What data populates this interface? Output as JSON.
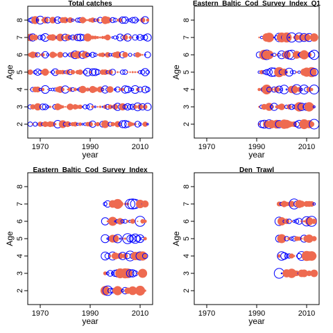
{
  "colors": {
    "positive": "#EE6A50",
    "negative": "#0000FF",
    "axis": "#000000"
  },
  "chart_data": [
    {
      "type": "scatter",
      "title": "Total catches",
      "xlabel": "year",
      "ylabel": "Age",
      "xlim": [
        1965,
        2015
      ],
      "ylim": [
        1.2,
        8.8
      ],
      "xticks": [
        "1970",
        "1990",
        "2010"
      ],
      "yticks": [
        "2",
        "3",
        "4",
        "5",
        "6",
        "7",
        "8"
      ],
      "years": [
        1966,
        2013
      ],
      "ages": [
        2,
        8
      ],
      "bubble_note": "bubbles in every year for ages 2-8"
    },
    {
      "type": "scatter",
      "title": "Eastern_Baltic_Cod_Survey_Index_Q1",
      "xlabel": "year",
      "ylabel": "Age",
      "xlim": [
        1965,
        2015
      ],
      "ylim": [
        1.2,
        8.8
      ],
      "xticks": [
        "1970",
        "1990",
        "2010"
      ],
      "yticks": [
        "2",
        "3",
        "4",
        "5",
        "6",
        "7",
        "8"
      ],
      "years": [
        1991,
        2013
      ],
      "ages": [
        2,
        7
      ]
    },
    {
      "type": "scatter",
      "title": "Eastern_Baltic_Cod_Survey_Index",
      "xlabel": "year",
      "ylabel": "Age",
      "xlim": [
        1965,
        2015
      ],
      "ylim": [
        1.2,
        8.8
      ],
      "xticks": [
        "1970",
        "1990",
        "2010"
      ],
      "yticks": [
        "2",
        "3",
        "4",
        "5",
        "6",
        "7",
        "8"
      ],
      "years": [
        1996,
        2012
      ],
      "ages": [
        2,
        7
      ]
    },
    {
      "type": "scatter",
      "title": "Den_Trawl",
      "xlabel": "year",
      "ylabel": "Age",
      "xlim": [
        1965,
        2015
      ],
      "ylim": [
        1.2,
        8.8
      ],
      "xticks": [
        "1970",
        "1990",
        "2010"
      ],
      "yticks": [
        "2",
        "3",
        "4",
        "5",
        "6",
        "7",
        "8"
      ],
      "years": [
        1999,
        2013
      ],
      "ages": [
        3,
        7
      ]
    }
  ]
}
